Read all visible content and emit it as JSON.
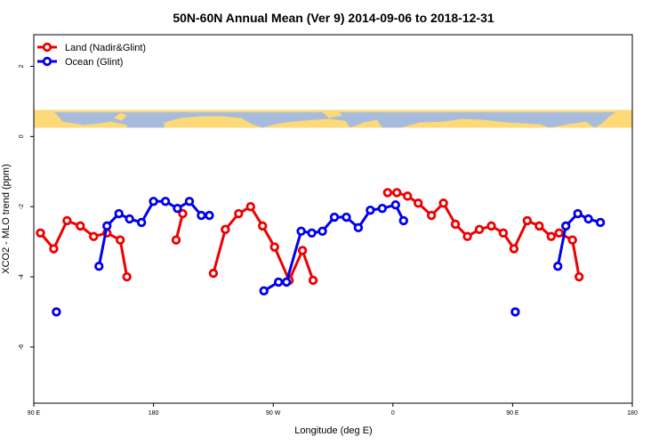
{
  "chart_data": {
    "type": "line",
    "title": "50N-60N Annual Mean (Ver 9)   2014-09-06 to 2018-12-31",
    "xlabel": "Longitude (deg E)",
    "ylabel": "XCO2 - MLO trend (ppm)",
    "xlim": [
      90,
      540
    ],
    "ylim": [
      -7.6,
      2.9
    ],
    "xticks": [
      90,
      180,
      270,
      360,
      450,
      540
    ],
    "xtick_labels": [
      "90 E",
      "180",
      "90 W",
      "0",
      "90 E",
      "180"
    ],
    "yticks": [
      -6,
      -4,
      -2,
      0,
      2
    ],
    "ytick_labels": [
      "-6",
      "-4",
      "-2",
      "0",
      "2"
    ],
    "grid": false,
    "legend_position": "top-left",
    "map_strip": {
      "y_range": [
        0.25,
        0.75
      ],
      "ocean_color": "#a7bcdc",
      "land_color": "#fdd977"
    },
    "series": [
      {
        "name": "Land (Nadir&Glint)",
        "color": "#ee0000",
        "segments": [
          [
            [
              95,
              -2.75
            ],
            [
              105,
              -3.2
            ],
            [
              115,
              -2.4
            ],
            [
              125,
              -2.55
            ],
            [
              135,
              -2.85
            ],
            [
              145,
              -2.75
            ],
            [
              155,
              -2.95
            ],
            [
              160,
              -4.0
            ]
          ],
          [
            [
              197,
              -2.95
            ],
            [
              202,
              -2.2
            ]
          ],
          [
            [
              225,
              -3.9
            ],
            [
              234,
              -2.65
            ],
            [
              244,
              -2.2
            ],
            [
              253,
              -2.0
            ],
            [
              262,
              -2.55
            ],
            [
              271,
              -3.15
            ],
            [
              282,
              -4.1
            ],
            [
              292,
              -3.25
            ],
            [
              300,
              -4.1
            ]
          ],
          [
            [
              356,
              -1.6
            ],
            [
              363,
              -1.6
            ],
            [
              371,
              -1.7
            ],
            [
              379,
              -1.9
            ],
            [
              389,
              -2.25
            ],
            [
              398,
              -1.9
            ],
            [
              407,
              -2.5
            ],
            [
              416,
              -2.85
            ],
            [
              425,
              -2.65
            ],
            [
              434,
              -2.55
            ],
            [
              443,
              -2.75
            ],
            [
              451,
              -3.2
            ],
            [
              461,
              -2.4
            ],
            [
              470,
              -2.55
            ],
            [
              479,
              -2.85
            ],
            [
              485,
              -2.75
            ],
            [
              495,
              -2.95
            ],
            [
              500,
              -4.0
            ]
          ]
        ]
      },
      {
        "name": "Ocean (Glint)",
        "color": "#0000ee",
        "segments": [
          [
            [
              107,
              -5.0
            ]
          ],
          [
            [
              139,
              -3.7
            ],
            [
              145,
              -2.55
            ],
            [
              154,
              -2.2
            ],
            [
              162,
              -2.35
            ],
            [
              171,
              -2.45
            ],
            [
              180,
              -1.85
            ],
            [
              189,
              -1.85
            ],
            [
              198,
              -2.05
            ],
            [
              207,
              -1.85
            ],
            [
              216,
              -2.25
            ],
            [
              222,
              -2.25
            ]
          ],
          [
            [
              263,
              -4.4
            ],
            [
              274,
              -4.15
            ],
            [
              280,
              -4.15
            ],
            [
              291,
              -2.7
            ],
            [
              299,
              -2.75
            ],
            [
              307,
              -2.7
            ],
            [
              316,
              -2.3
            ],
            [
              325,
              -2.3
            ],
            [
              334,
              -2.6
            ],
            [
              343,
              -2.1
            ],
            [
              352,
              -2.05
            ],
            [
              362,
              -1.95
            ],
            [
              368,
              -2.4
            ]
          ],
          [
            [
              452,
              -5.0
            ]
          ],
          [
            [
              484,
              -3.7
            ],
            [
              490,
              -2.55
            ],
            [
              499,
              -2.2
            ],
            [
              507,
              -2.35
            ],
            [
              516,
              -2.45
            ]
          ]
        ]
      }
    ]
  }
}
